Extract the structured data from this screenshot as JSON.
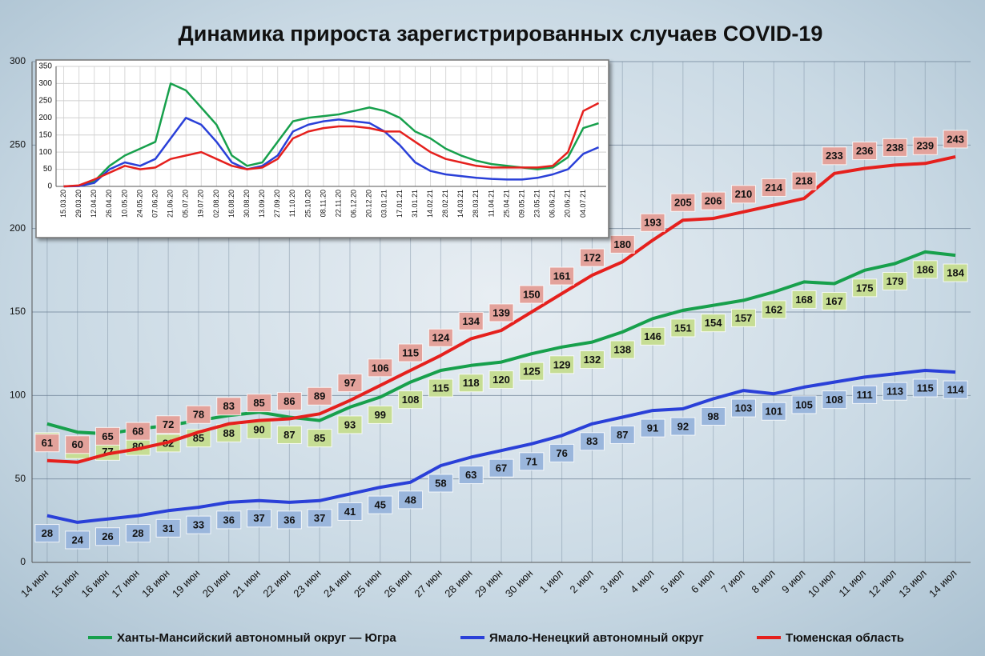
{
  "chart_data": [
    {
      "type": "line",
      "title": "Динамика прироста зарегистрированных случаев COVID-19",
      "categories": [
        "14 июн",
        "15 июн",
        "16 июн",
        "17 июн",
        "18 июн",
        "19 июн",
        "20 июн",
        "21 июн",
        "22 июн",
        "23 июн",
        "24 июн",
        "25 июн",
        "26 июн",
        "27 июн",
        "28 июн",
        "29 июн",
        "30 июн",
        "1 июл",
        "2 июл",
        "3 июл",
        "4 июл",
        "5 июл",
        "6 июл",
        "7 июл",
        "8 июл",
        "9 июл",
        "10 июл",
        "11 июл",
        "12 июл",
        "13 июл",
        "14 июл"
      ],
      "series": [
        {
          "name": "Ханты-Мансийский автономный округ — Югра",
          "color": "#17a04c",
          "label_color": "#c6dd94",
          "values": [
            83,
            78,
            77,
            80,
            82,
            85,
            88,
            90,
            87,
            85,
            93,
            99,
            108,
            115,
            118,
            120,
            125,
            129,
            132,
            138,
            146,
            151,
            154,
            157,
            162,
            168,
            167,
            175,
            179,
            186,
            184
          ]
        },
        {
          "name": "Ямало-Ненецкий автономный округ",
          "color": "#2a40d8",
          "label_color": "#9ab6dc",
          "values": [
            28,
            24,
            26,
            28,
            31,
            33,
            36,
            37,
            36,
            37,
            41,
            45,
            48,
            58,
            63,
            67,
            71,
            76,
            83,
            87,
            91,
            92,
            98,
            103,
            101,
            105,
            108,
            111,
            113,
            115,
            114
          ]
        },
        {
          "name": "Тюменская область",
          "color": "#e5201d",
          "label_color": "#e3a29b",
          "values": [
            61,
            60,
            65,
            68,
            72,
            78,
            83,
            85,
            86,
            89,
            97,
            106,
            115,
            124,
            134,
            139,
            150,
            161,
            172,
            180,
            193,
            205,
            206,
            210,
            214,
            218,
            233,
            236,
            238,
            239,
            243
          ]
        }
      ],
      "ylim": [
        0,
        300
      ],
      "yticks": [
        0,
        50,
        100,
        150,
        200,
        250,
        300
      ],
      "grid": true
    },
    {
      "type": "line",
      "categories": [
        "15.03.20",
        "29.03.20",
        "12.04.20",
        "26.04.20",
        "10.05.20",
        "24.05.20",
        "07.06.20",
        "21.06.20",
        "05.07.20",
        "19.07.20",
        "02.08.20",
        "16.08.20",
        "30.08.20",
        "13.09.20",
        "27.09.20",
        "11.10.20",
        "25.10.20",
        "08.11.20",
        "22.11.20",
        "06.12.20",
        "20.12.20",
        "03.01.21",
        "17.01.21",
        "31.01.21",
        "14.02.21",
        "28.02.21",
        "14.03.21",
        "28.03.21",
        "11.04.21",
        "25.04.21",
        "09.05.21",
        "23.05.21",
        "06.06.21",
        "20.06.21",
        "04.07.21",
        null
      ],
      "series": [
        {
          "color": "#17a04c",
          "values": [
            0,
            2,
            15,
            60,
            90,
            110,
            130,
            300,
            280,
            230,
            180,
            90,
            60,
            70,
            130,
            190,
            200,
            205,
            210,
            220,
            230,
            220,
            200,
            160,
            140,
            110,
            90,
            75,
            65,
            60,
            55,
            50,
            55,
            85,
            170,
            184
          ]
        },
        {
          "color": "#2a40d8",
          "values": [
            0,
            1,
            10,
            50,
            70,
            60,
            80,
            140,
            200,
            180,
            130,
            70,
            50,
            60,
            90,
            160,
            180,
            190,
            195,
            190,
            185,
            160,
            120,
            70,
            45,
            35,
            30,
            25,
            22,
            20,
            20,
            25,
            35,
            50,
            95,
            114
          ]
        },
        {
          "color": "#e5201d",
          "values": [
            0,
            3,
            20,
            40,
            60,
            50,
            55,
            80,
            90,
            100,
            80,
            60,
            50,
            55,
            80,
            140,
            160,
            170,
            175,
            175,
            170,
            160,
            160,
            130,
            100,
            80,
            70,
            60,
            55,
            55,
            55,
            55,
            60,
            100,
            220,
            243
          ]
        }
      ],
      "ylim": [
        0,
        350
      ],
      "yticks": [
        0,
        50,
        100,
        150,
        200,
        250,
        300,
        350
      ],
      "grid": true
    }
  ]
}
